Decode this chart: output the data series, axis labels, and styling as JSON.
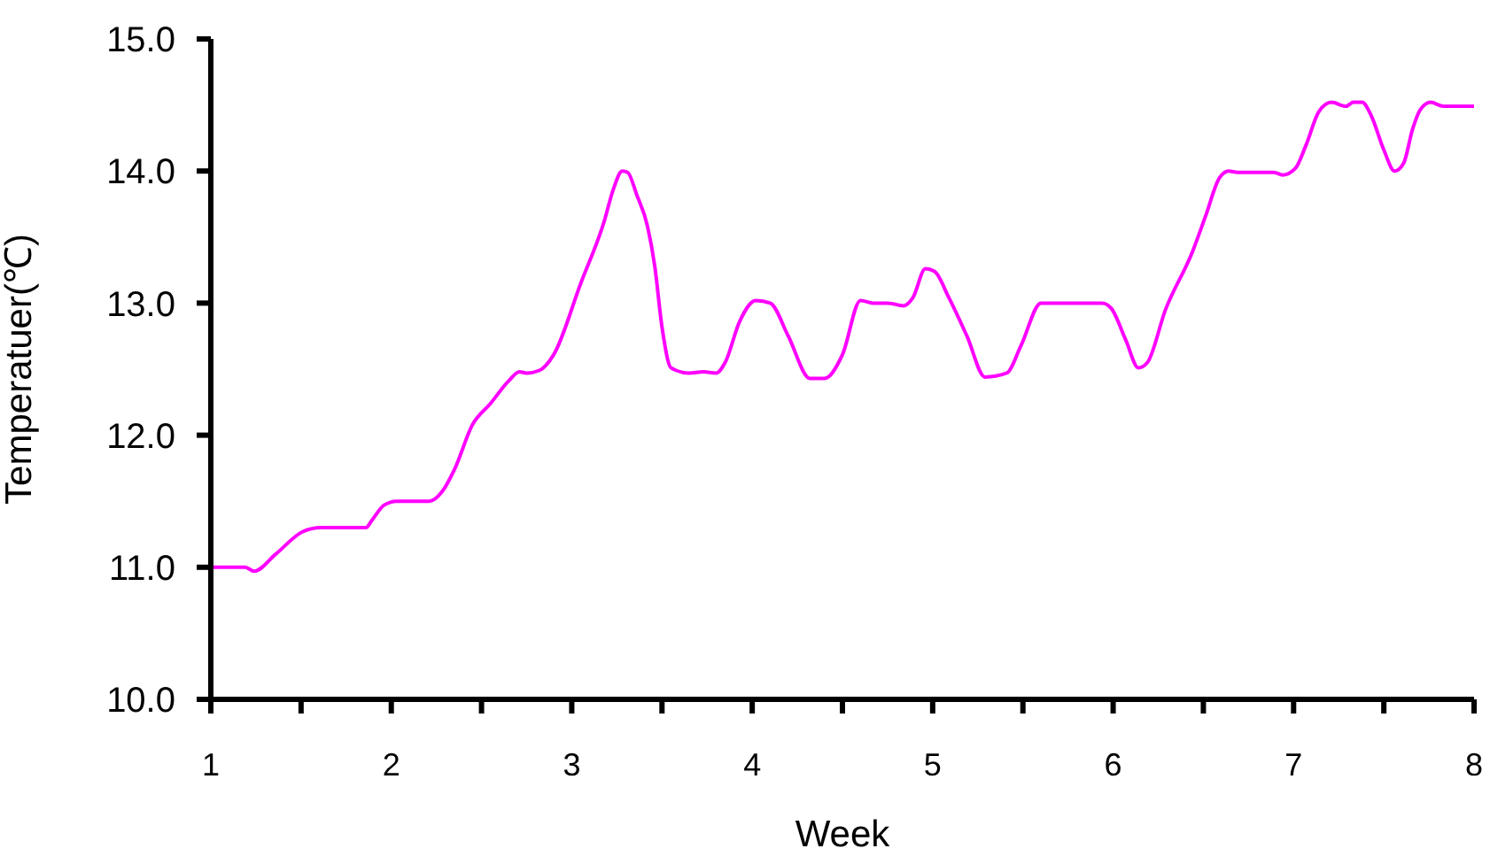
{
  "chart_data": {
    "type": "line",
    "xlabel": "Week",
    "ylabel": "Temperatuer(℃)",
    "xlim": [
      1,
      8
    ],
    "ylim": [
      10,
      15
    ],
    "xticks": [
      1,
      {
        "value": 1.5,
        "label": null
      },
      2,
      {
        "value": 2.5,
        "label": null
      },
      3,
      {
        "value": 3.5,
        "label": null
      },
      4,
      {
        "value": 4.5,
        "label": null
      },
      5,
      {
        "value": 5.5,
        "label": null
      },
      6,
      {
        "value": 6.5,
        "label": null
      },
      7,
      {
        "value": 7.5,
        "label": null
      },
      8
    ],
    "yticks": [
      {
        "value": 10,
        "label": "10.0"
      },
      {
        "value": 11,
        "label": "11.0"
      },
      {
        "value": 12,
        "label": "12.0"
      },
      {
        "value": 13,
        "label": "13.0"
      },
      {
        "value": 14,
        "label": "14.0"
      },
      {
        "value": 15,
        "label": "15.0"
      }
    ],
    "grid": false,
    "marker": "none",
    "line_style": "solid",
    "x": [
      1.0,
      1.19,
      1.24,
      1.36,
      1.51,
      1.61,
      1.86,
      1.89,
      1.96,
      2.03,
      2.21,
      2.28,
      2.35,
      2.45,
      2.55,
      2.65,
      2.71,
      2.75,
      2.82,
      2.9,
      3.05,
      3.18,
      3.23,
      3.28,
      3.31,
      3.36,
      3.42,
      3.46,
      3.5,
      3.55,
      3.65,
      3.73,
      3.8,
      3.85,
      3.93,
      4.02,
      4.1,
      4.2,
      4.32,
      4.4,
      4.5,
      4.6,
      4.67,
      4.75,
      4.84,
      4.89,
      4.96,
      5.01,
      5.09,
      5.19,
      5.29,
      5.41,
      5.49,
      5.6,
      5.65,
      5.94,
      5.99,
      6.07,
      6.14,
      6.19,
      6.29,
      6.44,
      6.51,
      6.59,
      6.64,
      6.69,
      6.89,
      6.94,
      7.01,
      7.07,
      7.14,
      7.21,
      7.29,
      7.33,
      7.38,
      7.43,
      7.5,
      7.56,
      7.61,
      7.66,
      7.7,
      7.76,
      7.83,
      8.0
    ],
    "series": [
      {
        "color": "#ff00ff",
        "values": [
          11.0,
          11.0,
          10.97,
          11.1,
          11.27,
          11.3,
          11.3,
          11.35,
          11.47,
          11.5,
          11.5,
          11.57,
          11.74,
          12.08,
          12.24,
          12.41,
          12.48,
          12.47,
          12.49,
          12.61,
          13.15,
          13.62,
          13.86,
          14.0,
          13.99,
          13.82,
          13.58,
          13.28,
          12.82,
          12.51,
          12.47,
          12.48,
          12.47,
          12.55,
          12.86,
          13.02,
          13.0,
          12.75,
          12.43,
          12.43,
          12.61,
          13.02,
          13.0,
          13.0,
          12.98,
          13.04,
          13.26,
          13.24,
          13.04,
          12.75,
          12.44,
          12.47,
          12.68,
          13.0,
          13.0,
          13.0,
          12.96,
          12.72,
          12.51,
          12.55,
          12.95,
          13.39,
          13.65,
          13.95,
          14.0,
          13.99,
          13.99,
          13.97,
          14.02,
          14.2,
          14.45,
          14.52,
          14.49,
          14.52,
          14.52,
          14.42,
          14.16,
          14.0,
          14.06,
          14.32,
          14.46,
          14.52,
          14.49,
          14.49
        ]
      }
    ]
  }
}
